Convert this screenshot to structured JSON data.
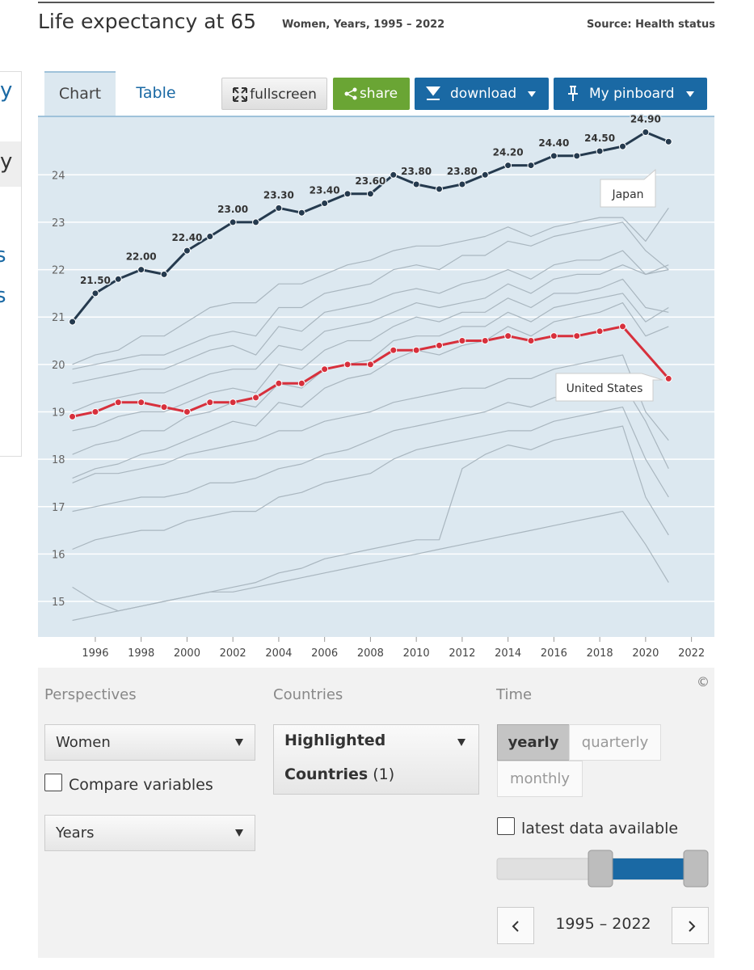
{
  "header": {
    "title": "Life expectancy at 65",
    "subtitle": "Women, Years, 1995 – 2022",
    "source": "Source: Health status"
  },
  "sidebar": [
    "y",
    "y",
    "s",
    "s"
  ],
  "tabs": [
    "Chart",
    "Table"
  ],
  "buttons": {
    "fullscreen": "fullscreen",
    "share": "share",
    "download": "download",
    "pinboard": "My pinboard"
  },
  "chart_data": {
    "type": "line",
    "xlim": [
      1993.5,
      2023
    ],
    "ylim": [
      14.25,
      25.25
    ],
    "xticks": [
      1996,
      1998,
      2000,
      2002,
      2004,
      2006,
      2008,
      2010,
      2012,
      2014,
      2016,
      2018,
      2020,
      2022
    ],
    "yticks": [
      15,
      16,
      17,
      18,
      19,
      20,
      21,
      22,
      23,
      24
    ],
    "grid": true,
    "annotations": [
      "Japan",
      "United States"
    ],
    "background_series": {
      "color": "#a9b6bf",
      "x": [
        1995,
        1996,
        1997,
        1998,
        1999,
        2000,
        2001,
        2002,
        2003,
        2004,
        2005,
        2006,
        2007,
        2008,
        2009,
        2010,
        2011,
        2012,
        2013,
        2014,
        2015,
        2016,
        2017,
        2018,
        2019,
        2020,
        2021
      ],
      "lines": [
        [
          19.9,
          20.0,
          20.1,
          20.2,
          20.2,
          20.4,
          20.6,
          20.7,
          20.6,
          21.2,
          21.2,
          21.5,
          21.6,
          21.7,
          22.0,
          22.1,
          22.0,
          22.3,
          22.3,
          22.6,
          22.5,
          22.7,
          22.8,
          22.9,
          23.0,
          22.4,
          22.0
        ],
        [
          19.6,
          19.7,
          19.8,
          19.9,
          19.9,
          20.1,
          20.3,
          20.4,
          20.2,
          20.8,
          20.7,
          21.1,
          21.2,
          21.3,
          21.5,
          21.6,
          21.5,
          21.7,
          21.8,
          22.0,
          21.8,
          22.1,
          22.2,
          22.2,
          22.4,
          21.9,
          22.1
        ],
        [
          19.0,
          19.2,
          19.3,
          19.4,
          19.4,
          19.6,
          19.8,
          19.9,
          19.9,
          20.4,
          20.3,
          20.7,
          20.8,
          20.9,
          21.1,
          21.3,
          21.2,
          21.3,
          21.4,
          21.7,
          21.5,
          21.8,
          21.9,
          21.9,
          22.1,
          21.9,
          22.0
        ],
        [
          18.6,
          18.7,
          18.9,
          19.0,
          19.0,
          19.2,
          19.4,
          19.5,
          19.4,
          20.0,
          19.9,
          20.3,
          20.5,
          20.5,
          20.8,
          21.0,
          20.9,
          21.1,
          21.1,
          21.4,
          21.2,
          21.5,
          21.5,
          21.6,
          21.8,
          21.2,
          21.1
        ],
        [
          17.6,
          17.8,
          17.9,
          18.1,
          18.2,
          18.4,
          18.6,
          18.8,
          18.7,
          19.2,
          19.1,
          19.5,
          19.7,
          19.8,
          20.1,
          20.3,
          20.2,
          20.4,
          20.5,
          20.8,
          20.6,
          20.9,
          21.0,
          21.1,
          21.3,
          20.6,
          20.8
        ],
        [
          17.5,
          17.7,
          17.7,
          17.8,
          17.9,
          18.1,
          18.2,
          18.3,
          18.4,
          18.6,
          18.6,
          18.8,
          18.9,
          19.0,
          19.2,
          19.3,
          19.4,
          19.5,
          19.5,
          19.7,
          19.7,
          19.9,
          20.0,
          20.1,
          20.2,
          19.0,
          18.4
        ],
        [
          16.1,
          16.3,
          16.4,
          16.5,
          16.5,
          16.7,
          16.8,
          16.9,
          16.9,
          17.2,
          17.3,
          17.5,
          17.6,
          17.7,
          18.0,
          18.2,
          18.3,
          18.4,
          18.5,
          18.6,
          18.6,
          18.8,
          18.9,
          19.0,
          19.1,
          18.0,
          17.2
        ],
        [
          15.3,
          15.0,
          14.8,
          14.9,
          15.0,
          15.1,
          15.2,
          15.2,
          15.3,
          15.4,
          15.5,
          15.6,
          15.7,
          15.8,
          15.9,
          16.0,
          16.1,
          16.2,
          16.3,
          16.4,
          16.5,
          16.6,
          16.7,
          16.8,
          16.9,
          16.2,
          15.4
        ],
        [
          16.9,
          17.0,
          17.1,
          17.2,
          17.2,
          17.3,
          17.5,
          17.5,
          17.6,
          17.8,
          17.9,
          18.1,
          18.2,
          18.4,
          18.6,
          18.7,
          18.8,
          18.9,
          19.0,
          19.2,
          19.1,
          19.3,
          19.4,
          19.5,
          19.6,
          18.8,
          17.8
        ],
        [
          14.6,
          14.7,
          14.8,
          14.9,
          15.0,
          15.1,
          15.2,
          15.3,
          15.4,
          15.6,
          15.7,
          15.9,
          16.0,
          16.1,
          16.2,
          16.3,
          16.3,
          17.8,
          18.1,
          18.3,
          18.2,
          18.4,
          18.5,
          18.6,
          18.7,
          17.2,
          16.4
        ],
        [
          18.1,
          18.3,
          18.4,
          18.6,
          18.6,
          18.9,
          19.0,
          19.2,
          19.1,
          19.6,
          19.5,
          19.9,
          20.0,
          20.1,
          20.5,
          20.6,
          20.6,
          20.8,
          20.8,
          21.1,
          20.9,
          21.2,
          21.3,
          21.4,
          21.5,
          20.9,
          21.2
        ],
        [
          20.0,
          20.2,
          20.3,
          20.6,
          20.6,
          20.9,
          21.2,
          21.3,
          21.3,
          21.7,
          21.7,
          21.9,
          22.1,
          22.2,
          22.4,
          22.5,
          22.5,
          22.6,
          22.7,
          22.9,
          22.7,
          22.9,
          23.0,
          23.1,
          23.1,
          22.6,
          23.3
        ]
      ]
    },
    "series": [
      {
        "name": "United States",
        "color": "#d7303c",
        "x": [
          1995,
          1996,
          1997,
          1998,
          1999,
          2000,
          2001,
          2002,
          2003,
          2004,
          2005,
          2006,
          2007,
          2008,
          2009,
          2010,
          2011,
          2012,
          2013,
          2014,
          2015,
          2016,
          2017,
          2018,
          2019,
          2021
        ],
        "values": [
          18.9,
          19.0,
          19.2,
          19.2,
          19.1,
          19.0,
          19.2,
          19.2,
          19.3,
          19.6,
          19.6,
          19.9,
          20.0,
          20.0,
          20.3,
          20.3,
          20.4,
          20.5,
          20.5,
          20.6,
          20.5,
          20.6,
          20.6,
          20.7,
          20.8,
          19.7
        ]
      },
      {
        "name": "Japan",
        "color": "#253a4e",
        "x": [
          1995,
          1996,
          1997,
          1998,
          1999,
          2000,
          2001,
          2002,
          2003,
          2004,
          2005,
          2006,
          2007,
          2008,
          2009,
          2010,
          2011,
          2012,
          2013,
          2014,
          2015,
          2016,
          2017,
          2018,
          2019,
          2020,
          2021
        ],
        "values": [
          20.9,
          21.5,
          21.8,
          22.0,
          21.9,
          22.4,
          22.7,
          23.0,
          23.0,
          23.3,
          23.2,
          23.4,
          23.6,
          23.6,
          24.0,
          23.8,
          23.7,
          23.8,
          24.0,
          24.2,
          24.2,
          24.4,
          24.4,
          24.5,
          24.6,
          24.9,
          24.7
        ],
        "value_labels": [
          null,
          "21.50",
          null,
          "22.00",
          null,
          "22.40",
          null,
          "23.00",
          null,
          "23.30",
          null,
          "23.40",
          null,
          "23.60",
          null,
          "23.80",
          null,
          "23.80",
          null,
          "24.20",
          null,
          "24.40",
          null,
          "24.50",
          null,
          "24.90",
          null
        ]
      }
    ]
  },
  "controls": {
    "perspectives": {
      "heading": "Perspectives",
      "variable": "Women",
      "compare": "Compare variables",
      "unit": "Years"
    },
    "countries": {
      "heading": "Countries",
      "line1": "Highlighted",
      "line2": "Countries",
      "count": "(1)"
    },
    "time": {
      "heading": "Time",
      "options": [
        "yearly",
        "quarterly",
        "monthly"
      ],
      "latest": "latest data available",
      "range": "1995 – 2022"
    },
    "copyright": "©"
  }
}
